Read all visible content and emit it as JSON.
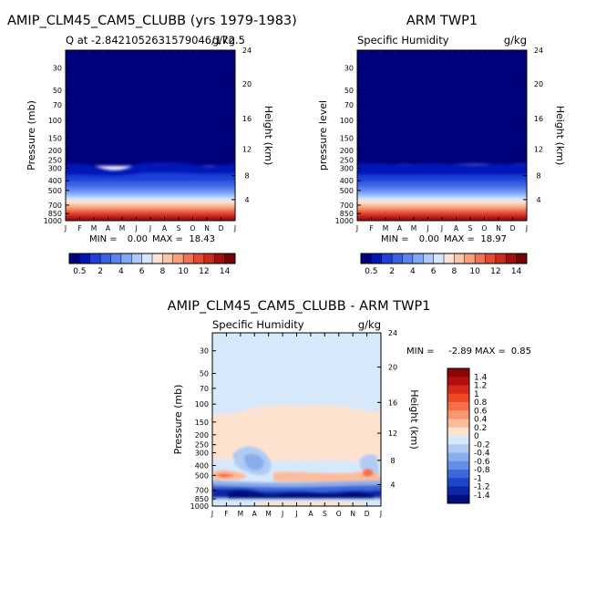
{
  "chart_data": [
    {
      "type": "heatmap",
      "title": "AMIP_CLM45_CAM5_CLUBB (yrs 1979-1983)",
      "subtitle_left": "Q at -2.8421052631579046/172.5",
      "subtitle_right": "g/kg",
      "ylabel": "Pressure (mb)",
      "ylabel_right": "Height (km)",
      "x_ticks": [
        "J",
        "F",
        "M",
        "A",
        "M",
        "J",
        "J",
        "A",
        "S",
        "O",
        "N",
        "D",
        "J"
      ],
      "y_ticks": [
        30,
        50,
        70,
        100,
        150,
        200,
        250,
        300,
        400,
        500,
        700,
        850,
        1000
      ],
      "height_ticks": [
        4,
        8,
        12,
        16,
        20,
        24
      ],
      "ylim": [
        20,
        1000
      ],
      "stats": {
        "min_label": "MIN =",
        "min_value": "0.00",
        "max_label": "MAX =",
        "max_value": "18.43"
      },
      "colorbar": {
        "labels": [
          "0.5",
          "2",
          "4",
          "6",
          "8",
          "10",
          "12",
          "14"
        ],
        "colors": [
          "#00007a",
          "#0018b8",
          "#1e40d8",
          "#3a62e4",
          "#5a84ee",
          "#80a8f6",
          "#aec9fa",
          "#d6e6fc",
          "#ffe4d4",
          "#fcc4a8",
          "#f8a07c",
          "#f07452",
          "#e44a30",
          "#cc2a1a",
          "#a01010",
          "#760404"
        ]
      }
    },
    {
      "type": "heatmap",
      "title": "ARM TWP1",
      "subtitle_left": "Specific Humidity",
      "subtitle_right": "g/kg",
      "ylabel": "pressure level",
      "ylabel_right": "Height (km)",
      "x_ticks": [
        "J",
        "F",
        "M",
        "A",
        "M",
        "J",
        "J",
        "A",
        "S",
        "O",
        "N",
        "D",
        "J"
      ],
      "y_ticks": [
        30,
        50,
        70,
        100,
        150,
        200,
        250,
        300,
        400,
        500,
        700,
        850,
        1000
      ],
      "height_ticks": [
        4,
        8,
        12,
        16,
        20,
        24
      ],
      "ylim": [
        20,
        1000
      ],
      "stats": {
        "min_label": "MIN =",
        "min_value": "0.00",
        "max_label": "MAX =",
        "max_value": "18.97"
      },
      "colorbar": {
        "labels": [
          "0.5",
          "2",
          "4",
          "6",
          "8",
          "10",
          "12",
          "14"
        ],
        "colors": [
          "#00007a",
          "#0018b8",
          "#1e40d8",
          "#3a62e4",
          "#5a84ee",
          "#80a8f6",
          "#aec9fa",
          "#d6e6fc",
          "#ffe4d4",
          "#fcc4a8",
          "#f8a07c",
          "#f07452",
          "#e44a30",
          "#cc2a1a",
          "#a01010",
          "#760404"
        ]
      }
    },
    {
      "type": "heatmap",
      "title": "AMIP_CLM45_CAM5_CLUBB - ARM TWP1",
      "subtitle_left": "Specific Humidity",
      "subtitle_right": "g/kg",
      "ylabel": "Pressure (mb)",
      "ylabel_right": "Height (km)",
      "x_ticks": [
        "J",
        "F",
        "M",
        "A",
        "M",
        "J",
        "J",
        "A",
        "S",
        "O",
        "N",
        "D",
        "J"
      ],
      "y_ticks": [
        30,
        50,
        70,
        100,
        150,
        200,
        250,
        300,
        400,
        500,
        700,
        850,
        1000
      ],
      "height_ticks": [
        4,
        8,
        12,
        16,
        20,
        24
      ],
      "ylim": [
        20,
        1000
      ],
      "stats": {
        "min_label": "MIN =",
        "min_value": "-2.89",
        "max_label": "MAX =",
        "max_value": "0.85"
      },
      "colorbar": {
        "labels": [
          "1.4",
          "1.2",
          "1",
          "0.8",
          "0.6",
          "0.4",
          "0.2",
          "0",
          "-0.2",
          "-0.4",
          "-0.6",
          "-0.8",
          "-1",
          "-1.2",
          "-1.4"
        ],
        "colors": [
          "#8a0606",
          "#b01010",
          "#d42a16",
          "#ee4a26",
          "#f47048",
          "#f8966e",
          "#fbbc9c",
          "#fde2d0",
          "#d6e8fa",
          "#b0ccf4",
          "#8aaeec",
          "#648ee4",
          "#3c68da",
          "#1c46c8",
          "#0c26a6",
          "#000e7e"
        ]
      }
    }
  ]
}
